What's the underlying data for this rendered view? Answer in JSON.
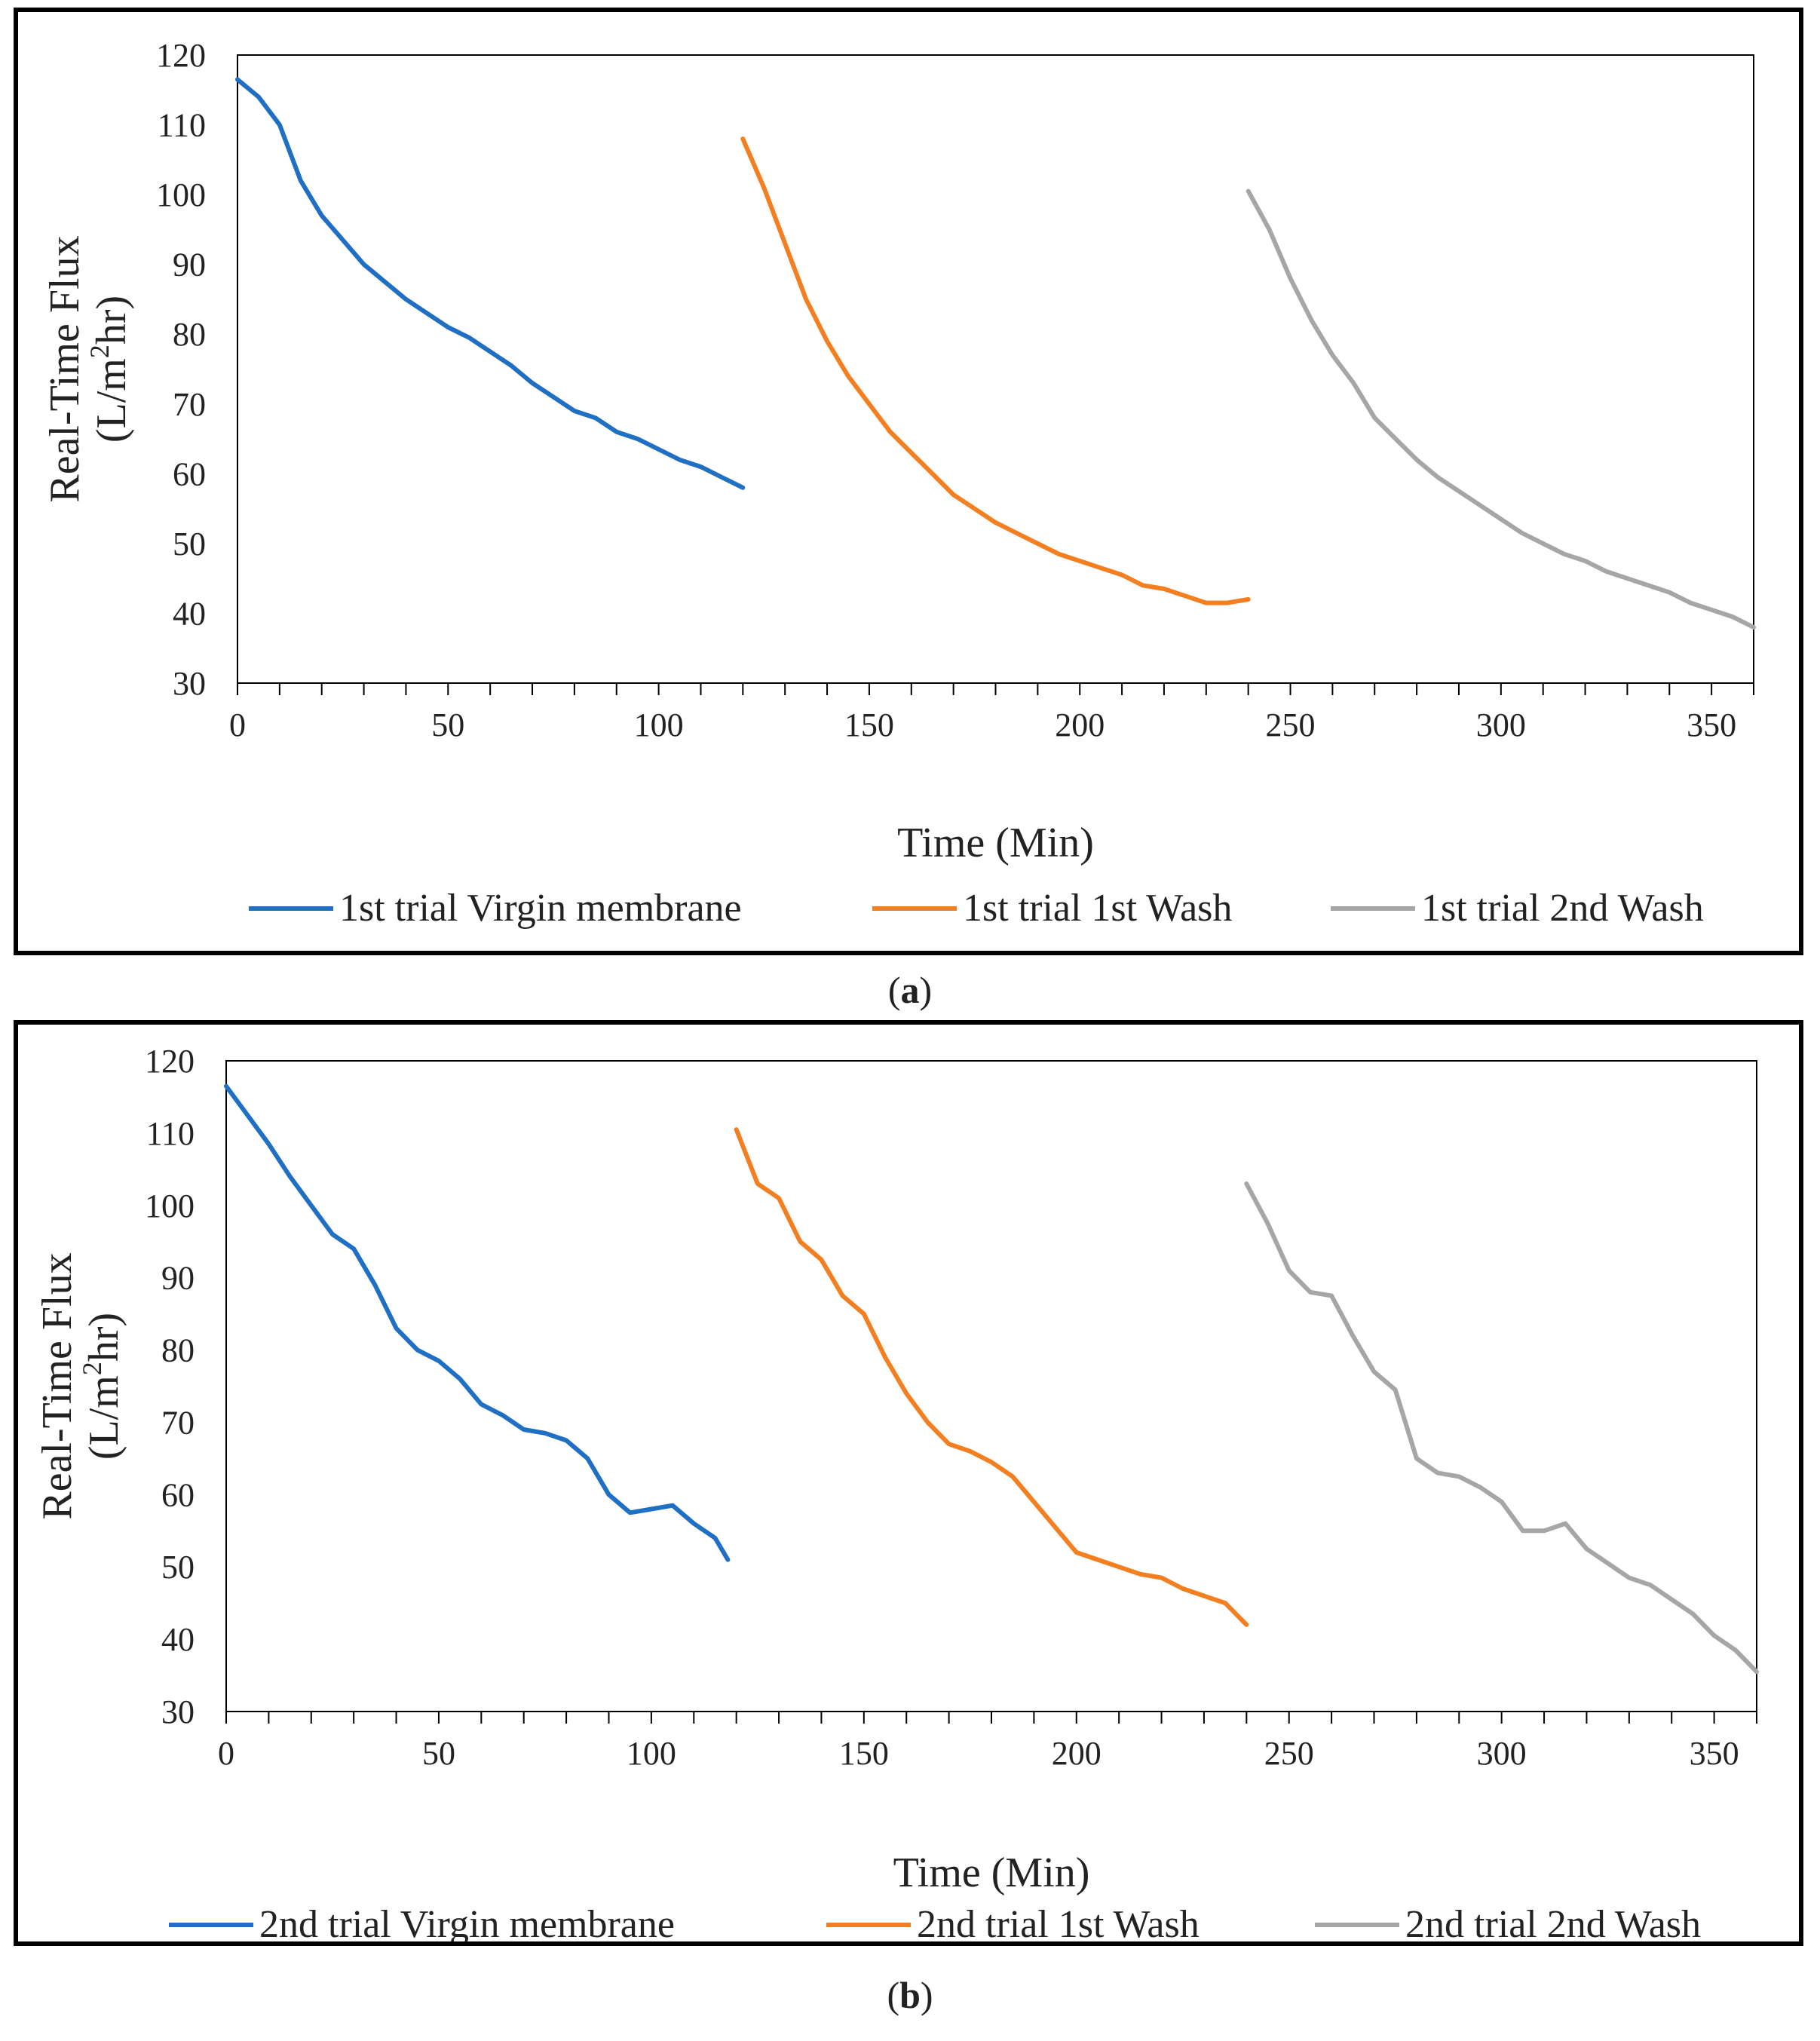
{
  "chart_data": [
    {
      "type": "line",
      "panel_label": "a",
      "xlabel": "Time (Min)",
      "ylabel_line1": "Real-Time Flux",
      "ylabel_line2_pre": "(L/m",
      "ylabel_line2_sup": "2",
      "ylabel_line2_post": "hr)",
      "xlim": [
        0,
        360
      ],
      "ylim": [
        30,
        120
      ],
      "xticks": [
        0,
        50,
        100,
        150,
        200,
        250,
        300,
        350
      ],
      "yticks": [
        30,
        40,
        50,
        60,
        70,
        80,
        90,
        100,
        110,
        120
      ],
      "grid": false,
      "legend_position": "bottom",
      "series": [
        {
          "name": "1st trial Virgin membrane",
          "color": "#1f6fc5",
          "x": [
            0,
            5,
            10,
            15,
            20,
            25,
            30,
            35,
            40,
            45,
            50,
            55,
            60,
            65,
            70,
            75,
            80,
            85,
            90,
            95,
            100,
            105,
            110,
            115,
            120
          ],
          "y": [
            116.5,
            114,
            110,
            102,
            97,
            93.5,
            90,
            87.5,
            85,
            83,
            81,
            79.5,
            77.5,
            75.5,
            73,
            71,
            69,
            68,
            66,
            65,
            63.5,
            62,
            61,
            59.5,
            58
          ]
        },
        {
          "name": "1st trial 1st Wash",
          "color": "#f47f20",
          "x": [
            120,
            125,
            130,
            135,
            140,
            145,
            150,
            155,
            160,
            165,
            170,
            175,
            180,
            185,
            190,
            195,
            200,
            205,
            210,
            215,
            220,
            225,
            230,
            235,
            240
          ],
          "y": [
            108,
            101,
            93,
            85,
            79,
            74,
            70,
            66,
            63,
            60,
            57,
            55,
            53,
            51.5,
            50,
            48.5,
            47.5,
            46.5,
            45.5,
            44,
            43.5,
            42.5,
            41.5,
            41.5,
            42
          ]
        },
        {
          "name": "1st trial 2nd Wash",
          "color": "#a6a6a6",
          "x": [
            240,
            245,
            250,
            255,
            260,
            265,
            270,
            275,
            280,
            285,
            290,
            295,
            300,
            305,
            310,
            315,
            320,
            325,
            330,
            335,
            340,
            345,
            350,
            355,
            360
          ],
          "y": [
            100.5,
            95,
            88,
            82,
            77,
            73,
            68,
            65,
            62,
            59.5,
            57.5,
            55.5,
            53.5,
            51.5,
            50,
            48.5,
            47.5,
            46,
            45,
            44,
            43,
            41.5,
            40.5,
            39.5,
            38
          ]
        }
      ]
    },
    {
      "type": "line",
      "panel_label": "b",
      "xlabel": "Time (Min)",
      "ylabel_line1": "Real-Time Flux",
      "ylabel_line2_pre": "(L/m",
      "ylabel_line2_sup": "2",
      "ylabel_line2_post": "hr)",
      "xlim": [
        0,
        360
      ],
      "ylim": [
        30,
        120
      ],
      "xticks": [
        0,
        50,
        100,
        150,
        200,
        250,
        300,
        350
      ],
      "yticks": [
        30,
        40,
        50,
        60,
        70,
        80,
        90,
        100,
        110,
        120
      ],
      "grid": false,
      "legend_position": "bottom",
      "series": [
        {
          "name": "2nd trial Virgin membrane",
          "color": "#1f6fc5",
          "x": [
            0,
            5,
            10,
            15,
            20,
            25,
            30,
            35,
            40,
            45,
            50,
            55,
            60,
            65,
            70,
            75,
            80,
            85,
            90,
            95,
            100,
            105,
            110,
            115,
            118
          ],
          "y": [
            116.5,
            112.5,
            108.5,
            104,
            100,
            96,
            94,
            89,
            83,
            80,
            78.5,
            76,
            72.5,
            71,
            69,
            68.5,
            67.5,
            65,
            60,
            57.5,
            58,
            58.5,
            56,
            54,
            51
          ]
        },
        {
          "name": "2nd trial 1st Wash",
          "color": "#f47f20",
          "x": [
            120,
            125,
            130,
            135,
            140,
            145,
            150,
            155,
            160,
            165,
            170,
            175,
            180,
            185,
            190,
            195,
            200,
            205,
            210,
            215,
            220,
            225,
            230,
            235,
            240
          ],
          "y": [
            110.5,
            103,
            101,
            95,
            92.5,
            87.5,
            85,
            79,
            74,
            70,
            67,
            66,
            64.5,
            62.5,
            59,
            55.5,
            52,
            51,
            50,
            49,
            48.5,
            47,
            46,
            45,
            42
          ]
        },
        {
          "name": "2nd trial 2nd Wash",
          "color": "#a6a6a6",
          "x": [
            240,
            245,
            250,
            255,
            260,
            265,
            270,
            275,
            280,
            285,
            290,
            295,
            300,
            305,
            310,
            315,
            320,
            325,
            330,
            335,
            340,
            345,
            350,
            355,
            360
          ],
          "y": [
            103,
            97.5,
            91,
            88,
            87.5,
            82,
            77,
            74.5,
            65,
            63,
            62.5,
            61,
            59,
            55,
            55,
            56,
            52.5,
            50.5,
            48.5,
            47.5,
            45.5,
            43.5,
            40.5,
            38.5,
            35.5
          ]
        }
      ]
    }
  ]
}
